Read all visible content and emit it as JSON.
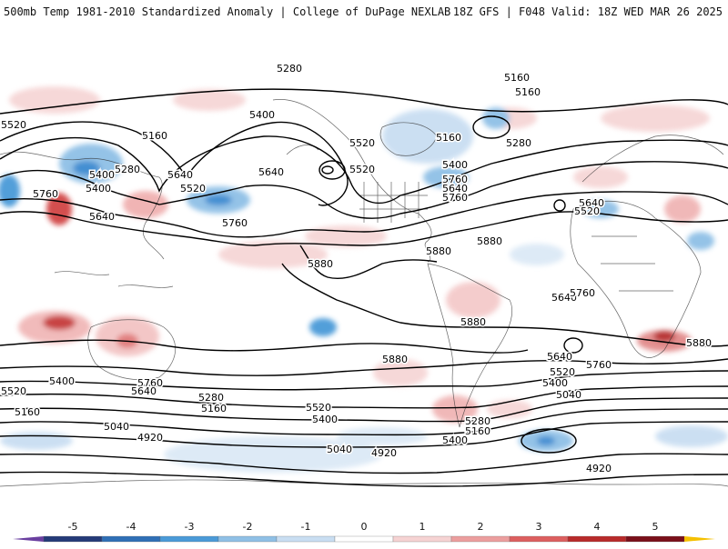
{
  "header": {
    "left_title": "500mb Temp 1981-2010 Standardized Anomaly | College of DuPage NEXLAB",
    "right_title": "18Z GFS | F048 Valid: 18Z WED MAR 26 2025"
  },
  "map": {
    "kind": "global-equirectangular",
    "field": "500mb Temp 1981-2010 Standardized Anomaly",
    "contour_field": "500mb height",
    "contour_labels": [
      {
        "text": "5280"
      },
      {
        "text": "5160"
      },
      {
        "text": "5160"
      },
      {
        "text": "5520"
      },
      {
        "text": "5400"
      },
      {
        "text": "5160"
      },
      {
        "text": "5520"
      },
      {
        "text": "5160"
      },
      {
        "text": "5280"
      },
      {
        "text": "5400"
      },
      {
        "text": "5280"
      },
      {
        "text": "5640"
      },
      {
        "text": "5400"
      },
      {
        "text": "5640"
      },
      {
        "text": "5520"
      },
      {
        "text": "5760"
      },
      {
        "text": "5640"
      },
      {
        "text": "5760"
      },
      {
        "text": "5520"
      },
      {
        "text": "5880"
      },
      {
        "text": "5880"
      },
      {
        "text": "5880"
      },
      {
        "text": "5640"
      },
      {
        "text": "5760"
      },
      {
        "text": "5880"
      },
      {
        "text": "5880"
      },
      {
        "text": "5880"
      },
      {
        "text": "5760"
      },
      {
        "text": "5640"
      },
      {
        "text": "5520"
      },
      {
        "text": "5400"
      },
      {
        "text": "5040"
      },
      {
        "text": "5760"
      },
      {
        "text": "5640"
      },
      {
        "text": "5520"
      },
      {
        "text": "5400"
      },
      {
        "text": "5280"
      },
      {
        "text": "5160"
      },
      {
        "text": "5520"
      },
      {
        "text": "5400"
      },
      {
        "text": "5640"
      },
      {
        "text": "5520"
      },
      {
        "text": "5280"
      },
      {
        "text": "5160"
      },
      {
        "text": "5400"
      },
      {
        "text": "5160"
      },
      {
        "text": "5040"
      },
      {
        "text": "4920"
      },
      {
        "text": "5040"
      },
      {
        "text": "4920"
      },
      {
        "text": "4920"
      },
      {
        "text": "5400"
      },
      {
        "text": "5640"
      },
      {
        "text": "5760"
      },
      {
        "text": "5760"
      }
    ]
  },
  "colorbar": {
    "ticks": [
      "-5",
      "-4",
      "-3",
      "-2",
      "-1",
      "0",
      "1",
      "2",
      "3",
      "4",
      "5"
    ],
    "colors": [
      "#243a78",
      "#2f6fb6",
      "#4a9ad8",
      "#8fc0e6",
      "#c9def2",
      "#ffffff",
      "#f6d3d3",
      "#ec9e9e",
      "#dd5f5f",
      "#b82a2a",
      "#7a0f1a"
    ],
    "low_cap_color": "#6a3fa0",
    "high_cap_color": "#f5c000"
  }
}
